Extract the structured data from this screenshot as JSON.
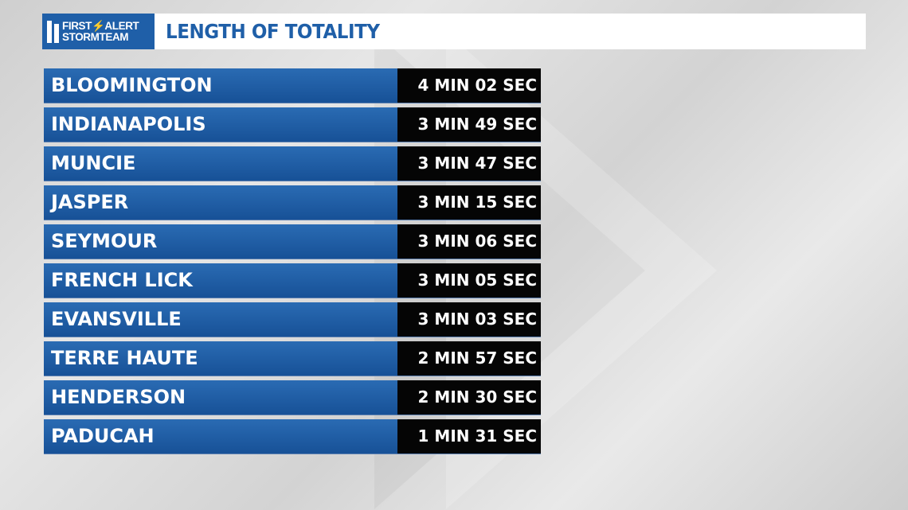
{
  "header": {
    "logo_line1": "FIRST⚡ALERT",
    "logo_line2": "STORMTEAM",
    "title": "LENGTH OF TOTALITY"
  },
  "rows": [
    {
      "city": "BLOOMINGTON",
      "duration": "4 MIN 02 SEC"
    },
    {
      "city": "INDIANAPOLIS",
      "duration": "3 MIN 49 SEC"
    },
    {
      "city": "MUNCIE",
      "duration": "3 MIN 47 SEC"
    },
    {
      "city": "JASPER",
      "duration": "3 MIN 15 SEC"
    },
    {
      "city": "SEYMOUR",
      "duration": "3 MIN 06 SEC"
    },
    {
      "city": "FRENCH LICK",
      "duration": "3 MIN 05 SEC"
    },
    {
      "city": "EVANSVILLE",
      "duration": "3 MIN 03 SEC"
    },
    {
      "city": "TERRE HAUTE",
      "duration": "2 MIN 57 SEC"
    },
    {
      "city": "HENDERSON",
      "duration": "2 MIN 30 SEC"
    },
    {
      "city": "PADUCAH",
      "duration": "1 MIN 31 SEC"
    }
  ],
  "colors": {
    "brand_blue": "#1f5fa8",
    "duration_bg": "#050505",
    "text": "#ffffff"
  }
}
